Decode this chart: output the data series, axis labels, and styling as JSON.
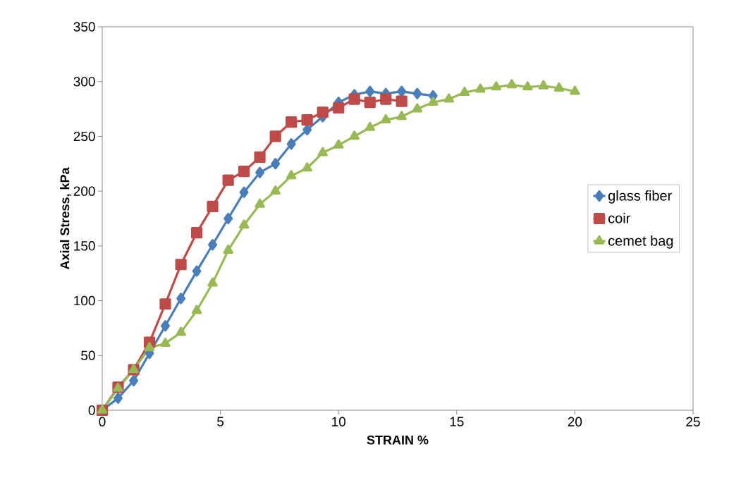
{
  "chart_data": {
    "type": "line",
    "xlabel": "STRAIN %",
    "ylabel": "Axial Stress, kPa",
    "xlim": [
      0,
      25
    ],
    "ylim": [
      0,
      350
    ],
    "xticks": [
      0,
      5,
      10,
      15,
      20,
      25
    ],
    "yticks": [
      0,
      50,
      100,
      150,
      200,
      250,
      300,
      350
    ],
    "grid": false,
    "legend": "right",
    "series": [
      {
        "name": "glass fiber",
        "color": "#4a7ebb",
        "marker": "diamond",
        "x": [
          0,
          0.67,
          1.33,
          2,
          2.67,
          3.33,
          4,
          4.67,
          5.33,
          6,
          6.67,
          7.33,
          8,
          8.67,
          9.33,
          10,
          10.67,
          11.33,
          12,
          12.67,
          13.33,
          14
        ],
        "values": [
          0,
          11,
          27,
          52,
          77,
          102,
          127,
          151,
          175,
          199,
          217,
          225,
          243,
          256,
          268,
          281,
          288,
          291,
          289,
          291,
          289,
          287
        ]
      },
      {
        "name": "coir",
        "color": "#be4b48",
        "marker": "square",
        "x": [
          0,
          0.67,
          1.33,
          2,
          2.67,
          3.33,
          4,
          4.67,
          5.33,
          6,
          6.67,
          7.33,
          8,
          8.67,
          9.33,
          10,
          10.67,
          11.33,
          12,
          12.67
        ],
        "values": [
          0,
          21,
          37,
          62,
          97,
          133,
          162,
          186,
          210,
          218,
          231,
          250,
          263,
          265,
          272,
          276,
          284,
          281,
          284,
          282
        ]
      },
      {
        "name": "cemet bag",
        "color": "#98b954",
        "marker": "triangle",
        "x": [
          0,
          0.67,
          1.33,
          2,
          2.67,
          3.33,
          4,
          4.67,
          5.33,
          6,
          6.67,
          7.33,
          8,
          8.67,
          9.33,
          10,
          10.67,
          11.33,
          12,
          12.67,
          13.33,
          14,
          14.67,
          15.33,
          16,
          16.67,
          17.33,
          18,
          18.67,
          19.33,
          20
        ],
        "values": [
          0,
          20,
          37,
          57,
          61,
          71,
          91,
          116,
          146,
          169,
          188,
          200,
          214,
          221,
          235,
          242,
          250,
          258,
          265,
          268,
          275,
          281,
          284,
          290,
          293,
          295,
          297,
          295,
          296,
          294,
          291
        ]
      }
    ]
  }
}
